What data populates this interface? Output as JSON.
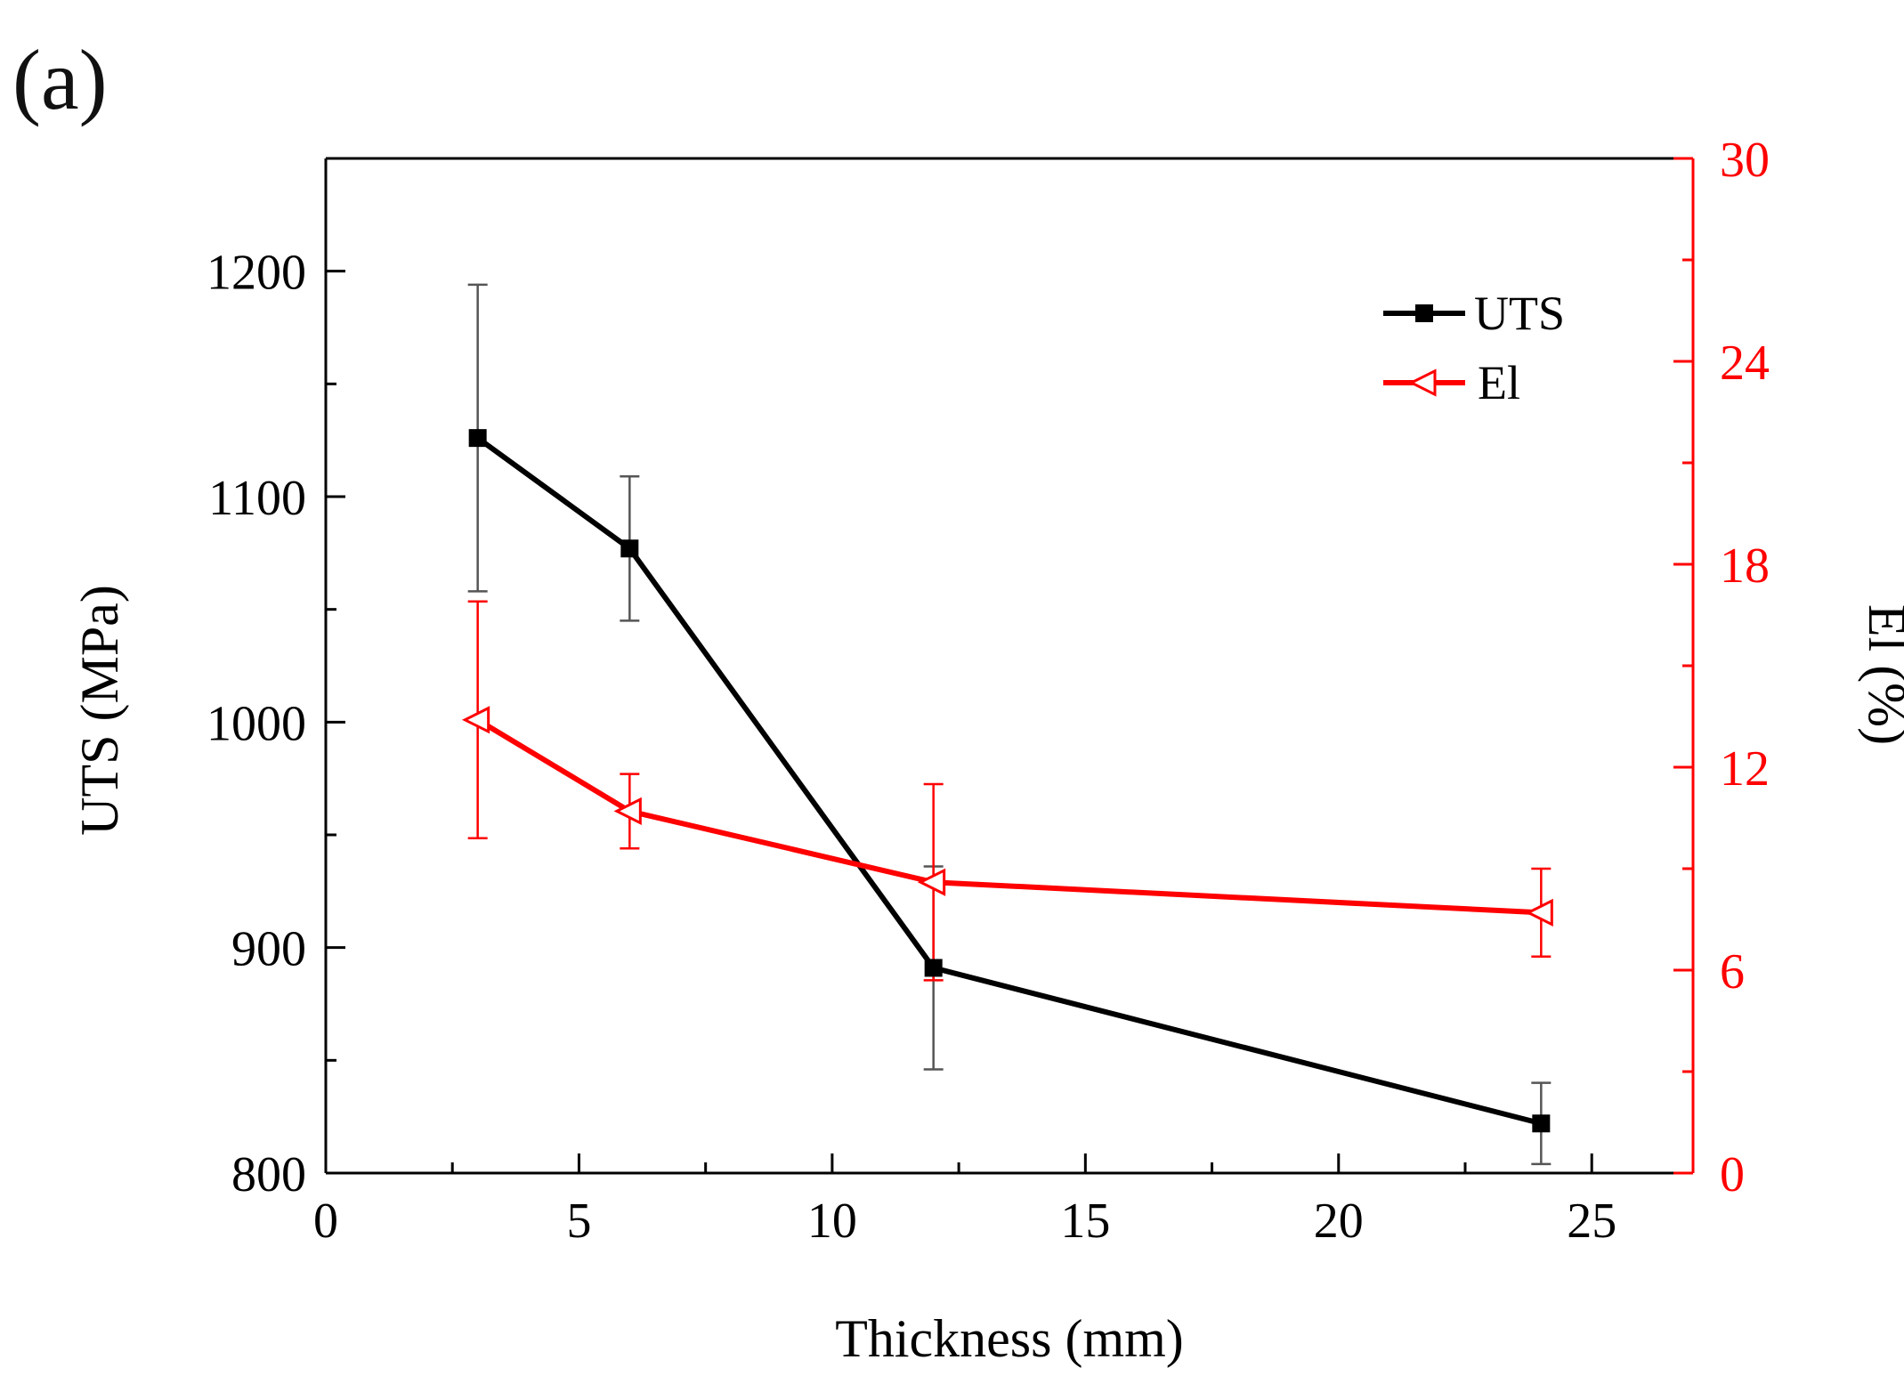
{
  "panel_label": "(a)",
  "colors": {
    "uts": "#000000",
    "el": "#ff0000",
    "axis": "#000000",
    "right_axis": "#ff0000",
    "uts_error": "#555555"
  },
  "chart_data": {
    "type": "line",
    "title": "",
    "xlabel": "Thickness (mm)",
    "ylabel": "UTS (MPa)",
    "y2label": "El (%)",
    "xlim": [
      0,
      27
    ],
    "ylim": [
      800,
      1250
    ],
    "y2lim": [
      0,
      30
    ],
    "x_ticks": [
      0,
      5,
      10,
      15,
      20,
      25
    ],
    "x_tick_labels": [
      "0",
      "5",
      "10",
      "15",
      "20",
      "25"
    ],
    "y_ticks": [
      800,
      900,
      1000,
      1100,
      1200
    ],
    "y_tick_labels": [
      "800",
      "900",
      "1000",
      "1100",
      "1200"
    ],
    "y2_ticks": [
      0,
      6,
      12,
      18,
      24,
      30
    ],
    "y2_tick_labels": [
      "0",
      "6",
      "12",
      "18",
      "24",
      "30"
    ],
    "grid": false,
    "legend_position": "top-right",
    "series": [
      {
        "name": "UTS",
        "axis": "left",
        "marker": "filled-square",
        "x": [
          3,
          6,
          12,
          24
        ],
        "values": [
          1126,
          1077,
          891,
          822
        ],
        "error": [
          68,
          32,
          45,
          18
        ]
      },
      {
        "name": "El",
        "axis": "right",
        "marker": "open-left-triangle",
        "x": [
          3,
          6,
          12,
          24
        ],
        "values": [
          13.4,
          10.7,
          8.6,
          7.7
        ],
        "error": [
          3.5,
          1.1,
          2.9,
          1.3
        ]
      }
    ]
  }
}
